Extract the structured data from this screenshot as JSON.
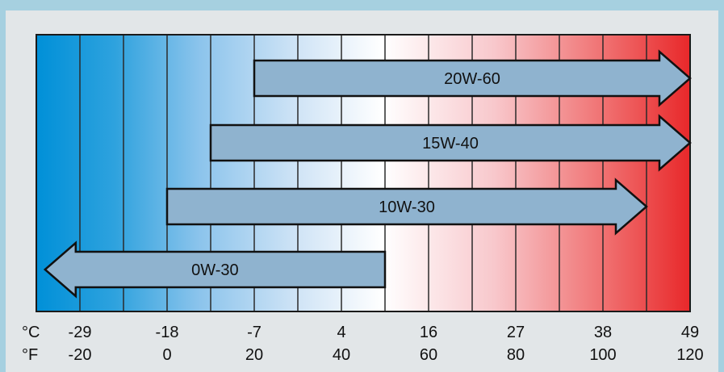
{
  "chart_data": {
    "type": "bar",
    "title": "",
    "x_unit_primary": "°F",
    "x_unit_secondary": "°C",
    "xlim_f": [
      -30,
      120
    ],
    "unit_labels": {
      "celsius": "°C",
      "fahrenheit": "°F"
    },
    "ticks": [
      {
        "f": -20,
        "c": "-29",
        "f_label": "-20"
      },
      {
        "f": 0,
        "c": "-18",
        "f_label": "0"
      },
      {
        "f": 20,
        "c": "-7",
        "f_label": "20"
      },
      {
        "f": 40,
        "c": "4",
        "f_label": "40"
      },
      {
        "f": 60,
        "c": "16",
        "f_label": "60"
      },
      {
        "f": 80,
        "c": "27",
        "f_label": "80"
      },
      {
        "f": 100,
        "c": "38",
        "f_label": "100"
      },
      {
        "f": 120,
        "c": "49",
        "f_label": "120"
      }
    ],
    "grid_step_f": 10,
    "series": [
      {
        "name": "20W-60",
        "from_f": 20,
        "to_f": 120,
        "direction": "right"
      },
      {
        "name": "15W-40",
        "from_f": 10,
        "to_f": 120,
        "direction": "right"
      },
      {
        "name": "10W-30",
        "from_f": 0,
        "to_f": 110,
        "direction": "right"
      },
      {
        "name": "0W-30",
        "from_f": 50,
        "to_f": -28,
        "direction": "left"
      }
    ],
    "colors": {
      "cold": "#0090d8",
      "mid": "#ffffff",
      "hot": "#e8302c",
      "arrow": "#8fb3cf"
    }
  }
}
